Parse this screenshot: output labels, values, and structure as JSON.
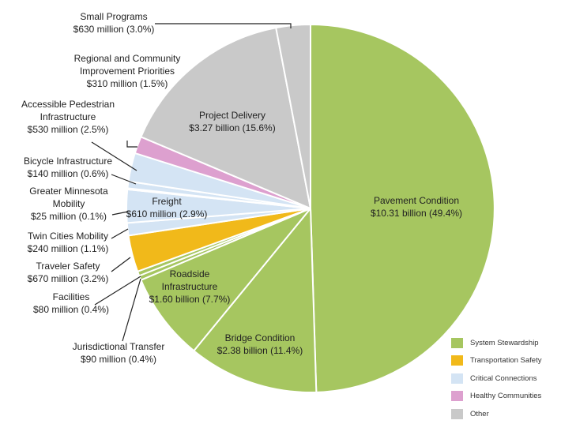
{
  "colors": {
    "stewardship": "#a6c660",
    "safety": "#f1b91a",
    "connections": "#d4e4f4",
    "healthy": "#dda0cf",
    "other": "#c9c9c9"
  },
  "legend": [
    {
      "label": "System Stewardship",
      "group": "stewardship"
    },
    {
      "label": "Transportation Safety",
      "group": "safety"
    },
    {
      "label": "Critical Connections",
      "group": "connections"
    },
    {
      "label": "Healthy Communities",
      "group": "healthy"
    },
    {
      "label": "Other",
      "group": "other"
    }
  ],
  "chart_data": {
    "type": "pie",
    "slices": [
      {
        "name": "Pavement Condition",
        "value_text": "$10.31 billion (49.4%)",
        "value": 10.31,
        "percent": 49.4,
        "group": "stewardship"
      },
      {
        "name": "Bridge Condition",
        "value_text": "$2.38 billion (11.4%)",
        "value": 2.38,
        "percent": 11.4,
        "group": "stewardship"
      },
      {
        "name": "Roadside Infrastructure",
        "value_text": "$1.60 billion (7.7%)",
        "value": 1.6,
        "percent": 7.7,
        "group": "stewardship"
      },
      {
        "name": "Jurisdictional Transfer",
        "value_text": "$90 million (0.4%)",
        "value": 0.09,
        "percent": 0.4,
        "group": "stewardship"
      },
      {
        "name": "Facilities",
        "value_text": "$80 million (0.4%)",
        "value": 0.08,
        "percent": 0.4,
        "group": "stewardship"
      },
      {
        "name": "Traveler Safety",
        "value_text": "$670 million (3.2%)",
        "value": 0.67,
        "percent": 3.2,
        "group": "safety"
      },
      {
        "name": "Twin Cities Mobility",
        "value_text": "$240 million (1.1%)",
        "value": 0.24,
        "percent": 1.1,
        "group": "connections"
      },
      {
        "name": "Freight",
        "value_text": "$610 million (2.9%)",
        "value": 0.61,
        "percent": 2.9,
        "group": "connections"
      },
      {
        "name": "Greater Minnesota Mobility",
        "value_text": "$25 million (0.1%)",
        "value": 0.025,
        "percent": 0.1,
        "group": "connections"
      },
      {
        "name": "Bicycle Infrastructure",
        "value_text": "$140 million (0.6%)",
        "value": 0.14,
        "percent": 0.6,
        "group": "connections"
      },
      {
        "name": "Accessible Pedestrian Infrastructure",
        "value_text": "$530 million (2.5%)",
        "value": 0.53,
        "percent": 2.5,
        "group": "connections"
      },
      {
        "name": "Regional and Community Improvement Priorities",
        "value_text": "$310 million (1.5%)",
        "value": 0.31,
        "percent": 1.5,
        "group": "healthy"
      },
      {
        "name": "Project Delivery",
        "value_text": "$3.27 billion (15.6%)",
        "value": 3.27,
        "percent": 15.6,
        "group": "other"
      },
      {
        "name": "Small Programs",
        "value_text": "$630 million (3.0%)",
        "value": 0.63,
        "percent": 3.0,
        "group": "other"
      }
    ]
  }
}
